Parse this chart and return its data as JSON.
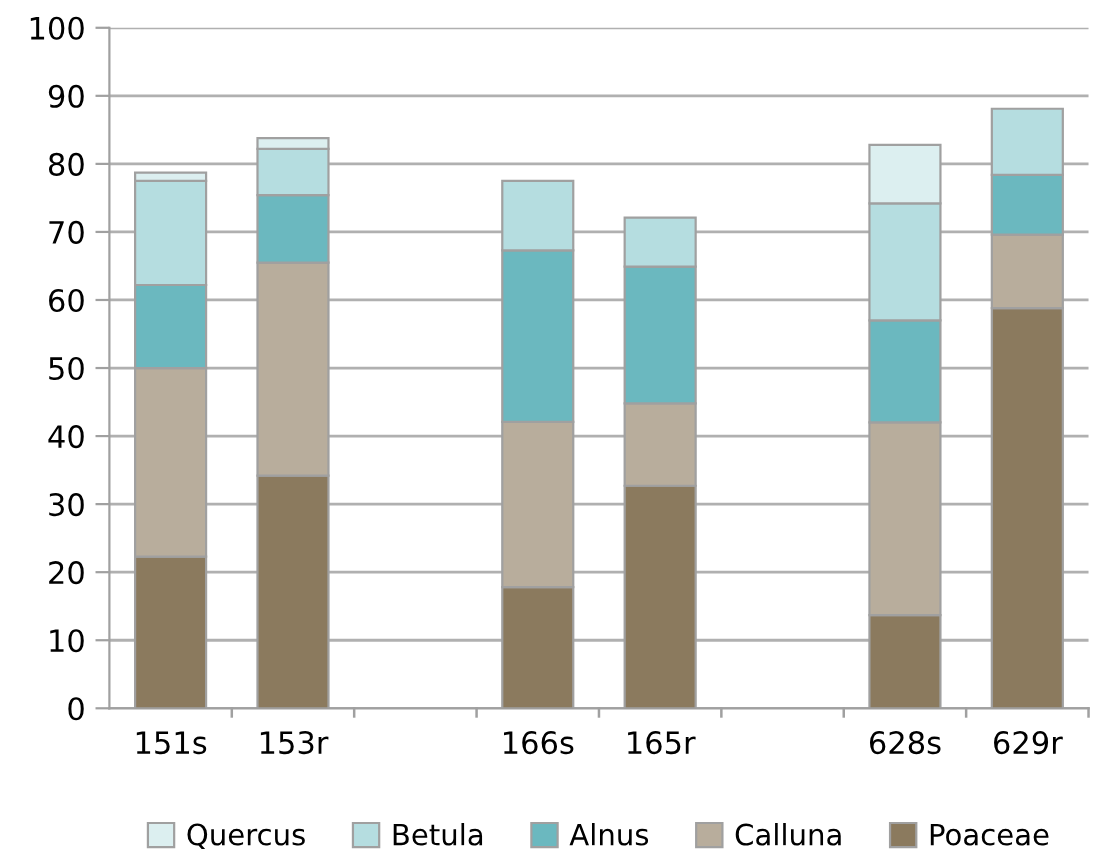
{
  "chart_data": {
    "type": "bar",
    "stacked": true,
    "categories": [
      "151s",
      "153r",
      null,
      "166s",
      "165r",
      null,
      "628s",
      "629r"
    ],
    "series": [
      {
        "name": "Poaceae",
        "color": "#8b7a5e",
        "values": [
          22.3,
          34.2,
          null,
          17.8,
          32.7,
          null,
          13.7,
          58.8
        ]
      },
      {
        "name": "Calluna",
        "color": "#b8ad9c",
        "values": [
          27.7,
          31.3,
          null,
          24.3,
          12.1,
          null,
          28.3,
          10.8
        ]
      },
      {
        "name": "Alnus",
        "color": "#6bb8bf",
        "values": [
          12.2,
          9.9,
          null,
          25.2,
          20.1,
          null,
          15.0,
          8.8
        ]
      },
      {
        "name": "Betula",
        "color": "#b5dde0",
        "values": [
          15.3,
          6.8,
          null,
          10.2,
          7.2,
          null,
          17.2,
          9.7
        ]
      },
      {
        "name": "Quercus",
        "color": "#dceff0",
        "values": [
          1.2,
          1.6,
          null,
          null,
          null,
          null,
          8.6,
          null
        ]
      }
    ],
    "ylim": [
      0,
      100
    ],
    "yticks": [
      0,
      10,
      20,
      30,
      40,
      50,
      60,
      70,
      80,
      90,
      100
    ],
    "grid": "y",
    "legend": "bottom"
  }
}
